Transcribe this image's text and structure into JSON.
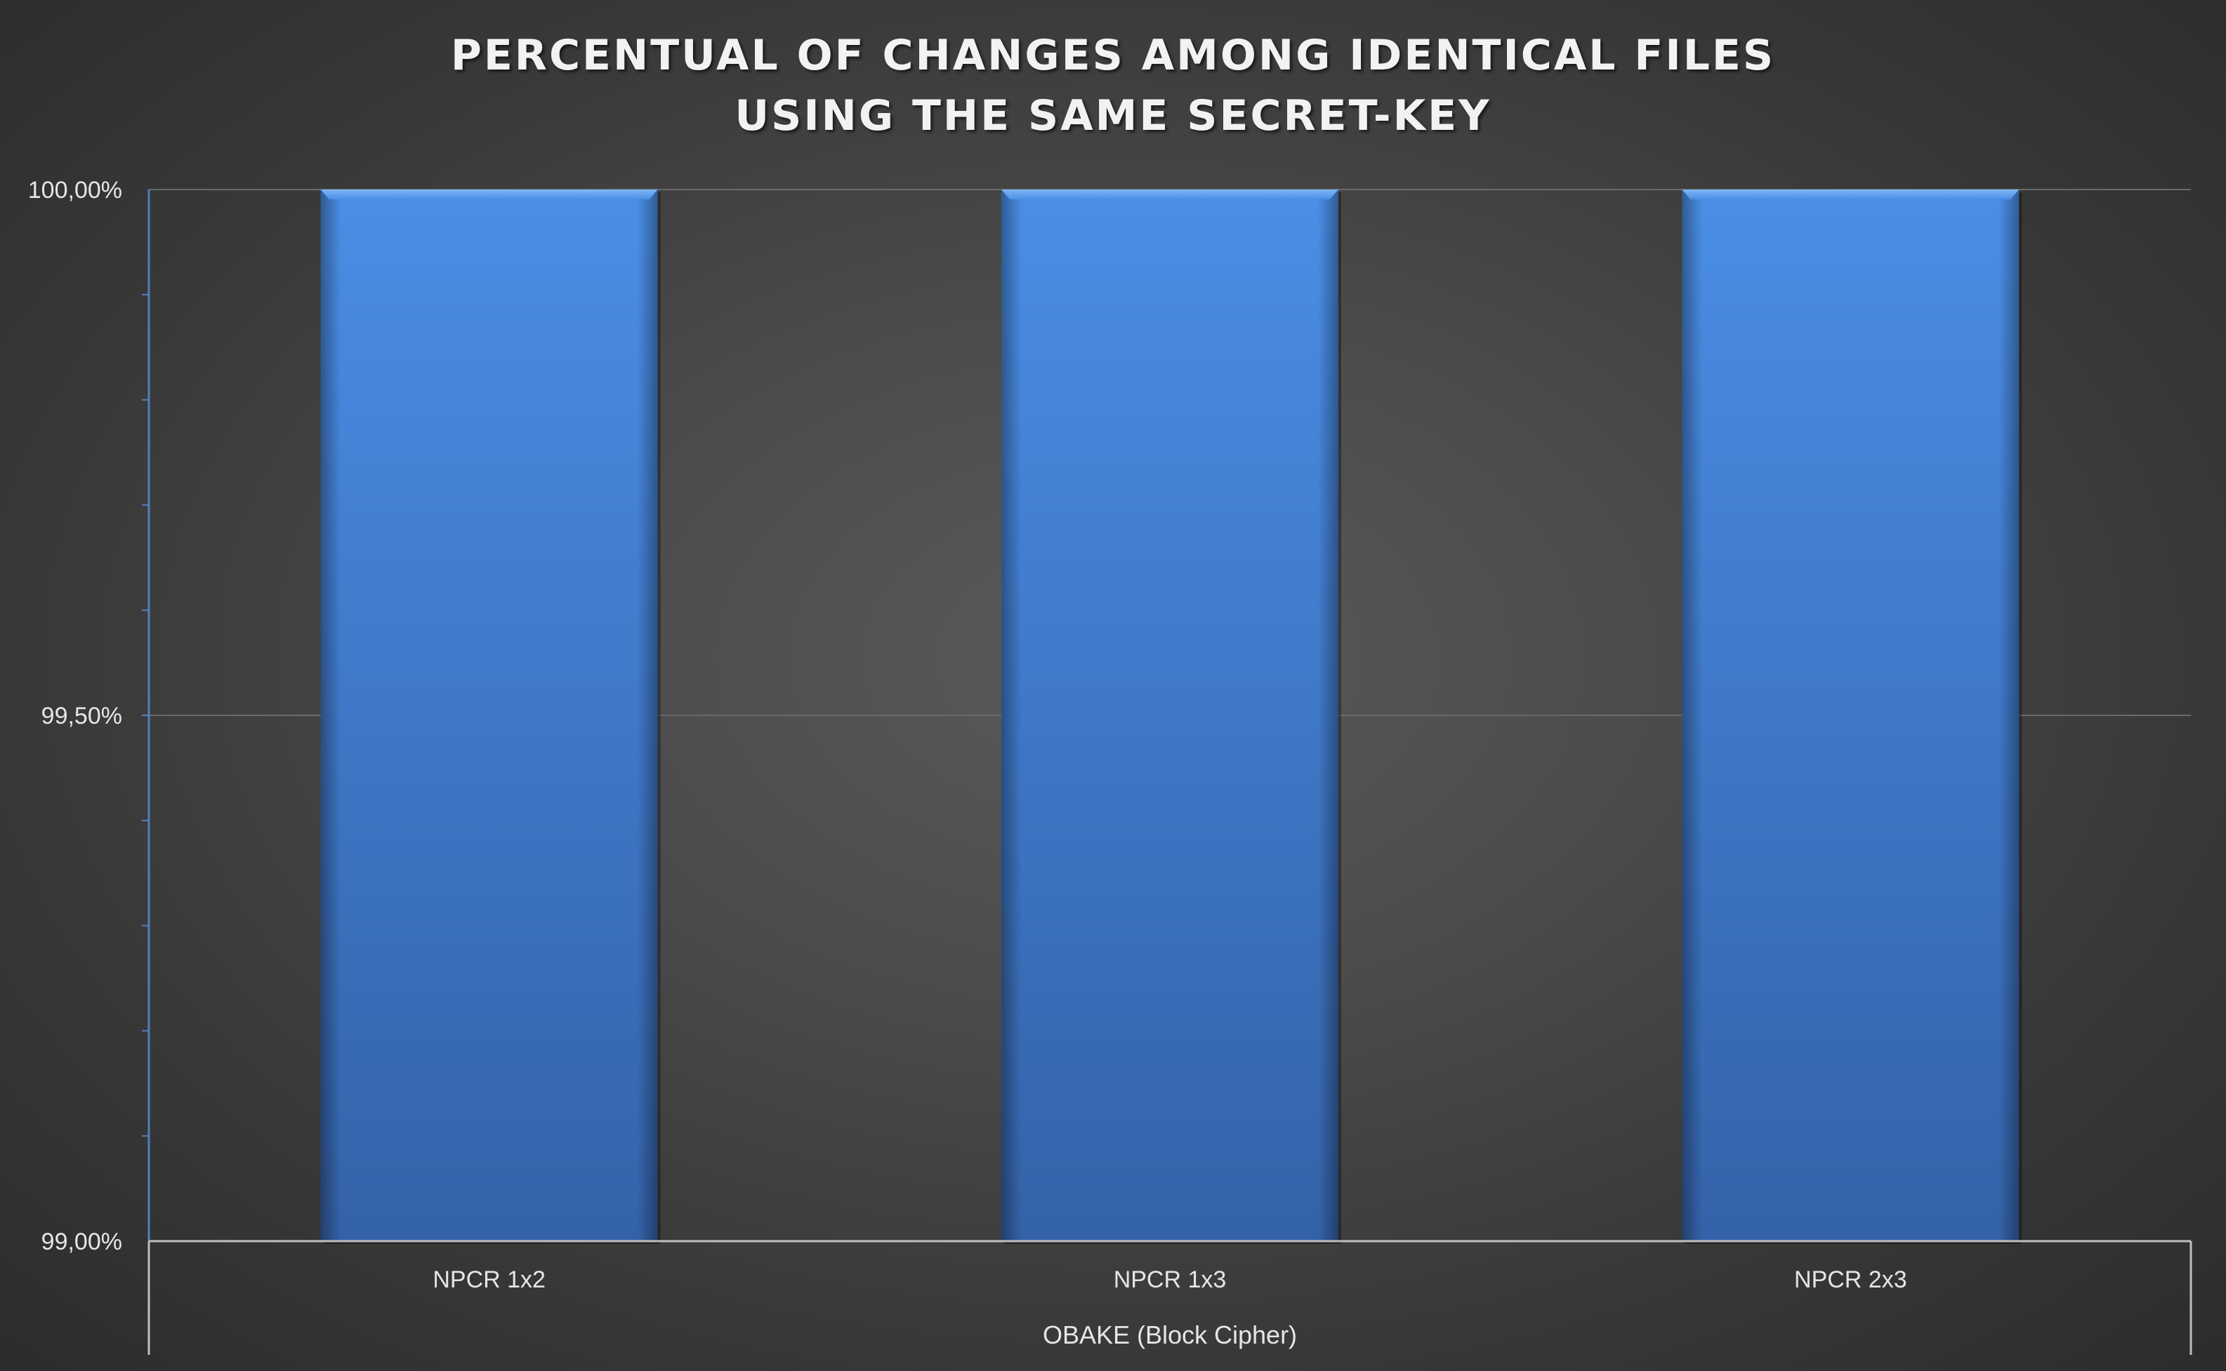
{
  "chart_data": {
    "type": "bar",
    "title_lines": [
      "PERCENTUAL OF CHANGES AMONG IDENTICAL FILES",
      "USING THE SAME SECRET-KEY"
    ],
    "categories": [
      "NPCR 1x2",
      "NPCR 1x3",
      "NPCR 2x3"
    ],
    "group_label": "OBAKE (Block Cipher)",
    "values": [
      100.0,
      100.0,
      100.0
    ],
    "ylim": [
      99.0,
      100.0
    ],
    "y_ticks": [
      {
        "value": 100.0,
        "label": "100,00%"
      },
      {
        "value": 99.5,
        "label": "99,50%"
      },
      {
        "value": 99.0,
        "label": "99,00%"
      }
    ],
    "grid": true,
    "legend": "none",
    "colors": {
      "bar_top": "#4a8ee6",
      "bar_bottom": "#3462a8",
      "grid": "#6a6a6a",
      "axis": "#bfbfbf",
      "y_axis": "#4f81bd"
    }
  }
}
